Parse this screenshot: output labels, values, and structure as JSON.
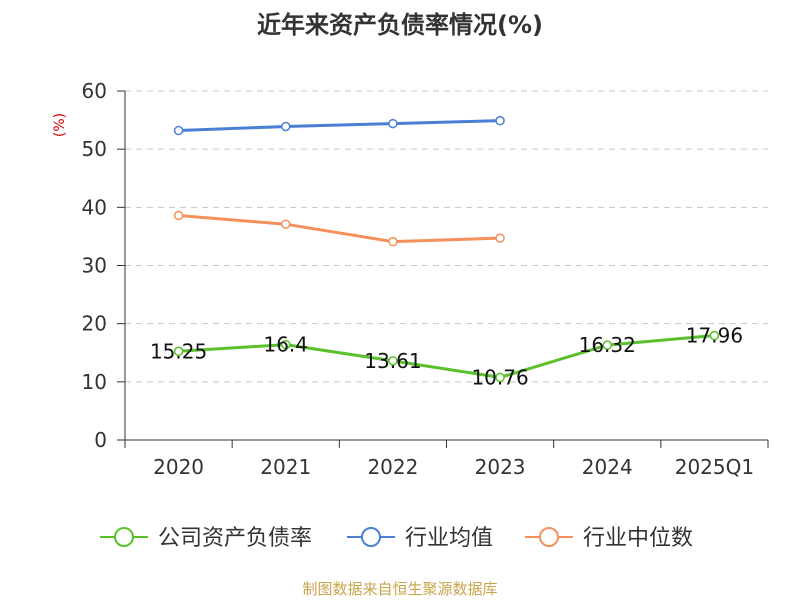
{
  "chart_data": {
    "type": "line",
    "title": "近年来资产负债率情况(%)",
    "ylabel": "(%)",
    "xlabel": "",
    "categories": [
      "2020",
      "2021",
      "2022",
      "2023",
      "2024",
      "2025Q1"
    ],
    "ylim": [
      0,
      60
    ],
    "yticks": [
      0,
      10,
      20,
      30,
      40,
      50,
      60
    ],
    "grid": true,
    "legend_position": "bottom",
    "series": [
      {
        "name": "公司资产负债率",
        "color": "#5ac12b",
        "values": [
          15.25,
          16.4,
          13.61,
          10.76,
          16.32,
          17.96
        ],
        "labels": [
          "15.25",
          "16.4",
          "13.61",
          "10.76",
          "16.32",
          "17.96"
        ]
      },
      {
        "name": "行业均值",
        "color": "#4a7fd6",
        "values": [
          53.2,
          53.9,
          54.4,
          54.9,
          null,
          null
        ]
      },
      {
        "name": "行业中位数",
        "color": "#f58f5c",
        "values": [
          38.6,
          37.1,
          34.1,
          34.7,
          null,
          null
        ]
      }
    ],
    "source": "制图数据来自恒生聚源数据库",
    "source_color": "#c8a54a",
    "ylabel_color": "#cc0000"
  }
}
